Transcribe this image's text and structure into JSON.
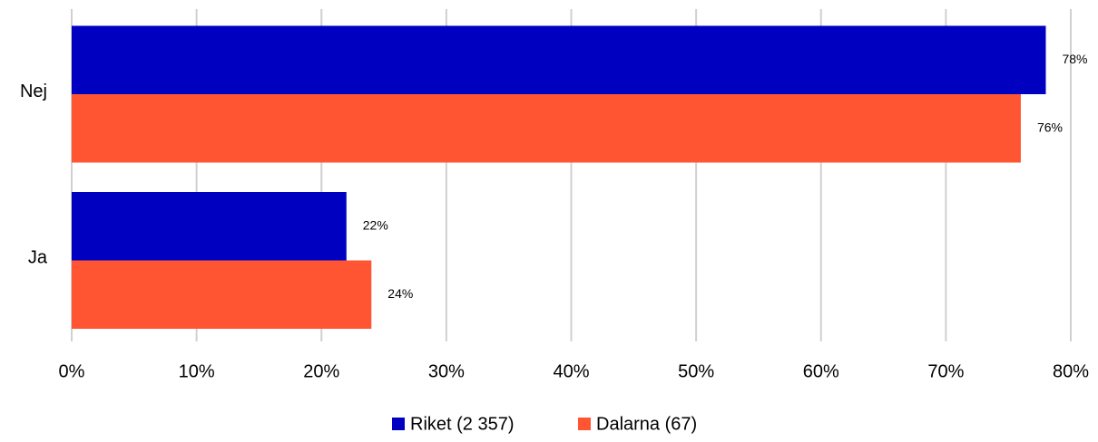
{
  "chart_data": {
    "type": "hbar",
    "categories": [
      "Nej",
      "Ja"
    ],
    "series": [
      {
        "name": "Riket (2 357)",
        "color": "#0000c0",
        "values": [
          78,
          22
        ],
        "value_labels": [
          "78%",
          "22%"
        ]
      },
      {
        "name": "Dalarna (67)",
        "color": "#ff5533",
        "values": [
          76,
          24
        ],
        "value_labels": [
          "76%",
          "24%"
        ]
      }
    ],
    "xlim": [
      0,
      80
    ],
    "xticks": [
      {
        "value": 0,
        "label": "0%"
      },
      {
        "value": 10,
        "label": "10%"
      },
      {
        "value": 20,
        "label": "20%"
      },
      {
        "value": 30,
        "label": "30%"
      },
      {
        "value": 40,
        "label": "40%"
      },
      {
        "value": 50,
        "label": "50%"
      },
      {
        "value": 60,
        "label": "60%"
      },
      {
        "value": 70,
        "label": "70%"
      },
      {
        "value": 80,
        "label": "80%"
      }
    ],
    "grid": true,
    "legend": "bottom"
  }
}
